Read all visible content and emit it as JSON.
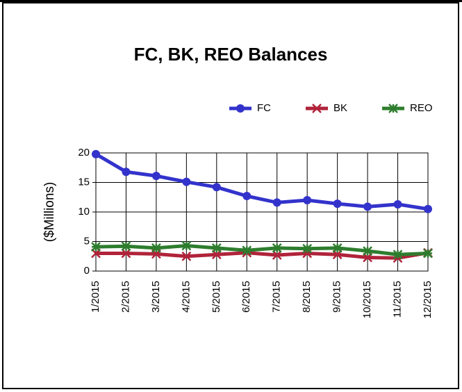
{
  "chart_data": {
    "type": "line",
    "title": "FC, BK, REO Balances",
    "y_label": "($Millions)",
    "categories": [
      "1/2015",
      "2/2015",
      "3/2015",
      "4/2015",
      "5/2015",
      "6/2015",
      "7/2015",
      "8/2015",
      "9/2015",
      "10/2015",
      "11/2015",
      "12/2015"
    ],
    "series": [
      {
        "name": "FC",
        "color": "#3333cc",
        "marker": "circle",
        "values": [
          19.8,
          16.8,
          16.1,
          15.1,
          14.2,
          12.7,
          11.6,
          12.0,
          11.4,
          10.9,
          11.3,
          10.5
        ]
      },
      {
        "name": "BK",
        "color": "#b0233a",
        "marker": "x",
        "values": [
          3.0,
          3.0,
          2.9,
          2.5,
          2.8,
          3.1,
          2.7,
          3.0,
          2.8,
          2.3,
          2.2,
          3.1
        ]
      },
      {
        "name": "REO",
        "color": "#2e7d2e",
        "marker": "star",
        "values": [
          4.1,
          4.2,
          3.9,
          4.3,
          3.9,
          3.5,
          3.9,
          3.8,
          3.9,
          3.4,
          2.8,
          3.0
        ]
      }
    ],
    "ylim": [
      0,
      20
    ],
    "yticks": [
      0,
      5,
      10,
      15,
      20
    ],
    "grid": true
  }
}
